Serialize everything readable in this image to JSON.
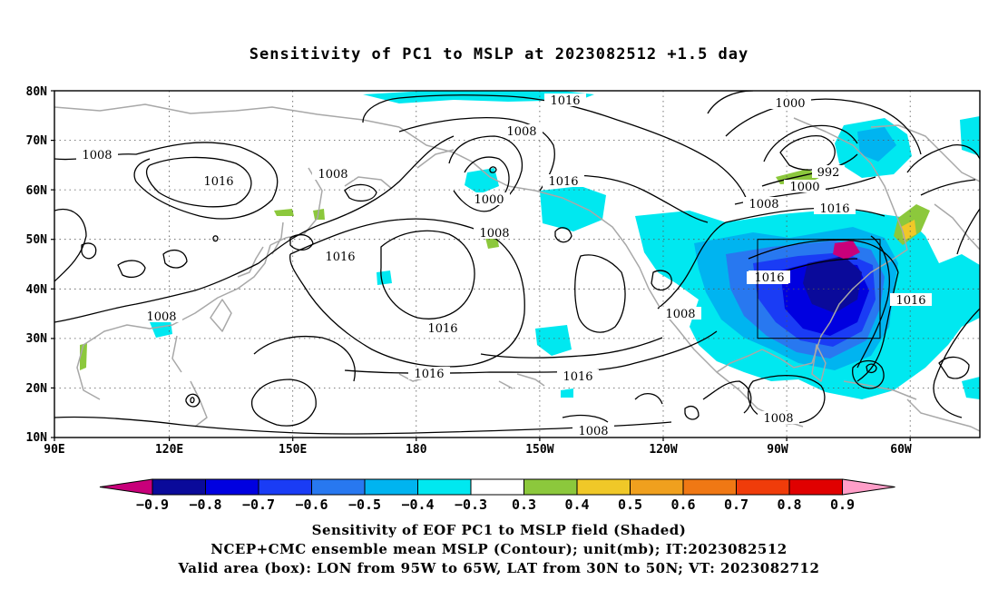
{
  "map": {
    "title": "Sensitivity of PC1 to MSLP at 2023082512 +1.5 day",
    "lat_labels": [
      "80N",
      "70N",
      "60N",
      "50N",
      "40N",
      "30N",
      "20N",
      "10N"
    ],
    "lon_labels": [
      "90E",
      "120E",
      "150E",
      "180",
      "150W",
      "120W",
      "90W",
      "60W"
    ],
    "contour_labels": [
      "1016",
      "1008",
      "1008",
      "1016",
      "1008",
      "1016",
      "1000",
      "1008",
      "1016",
      "1016",
      "1008",
      "1016",
      "1016",
      "1016",
      "1008",
      "1008",
      "1000",
      "992",
      "1000",
      "1008",
      "1016",
      "1016",
      "1016",
      "1008"
    ],
    "box": {
      "lon_from": "95W",
      "lon_to": "65W",
      "lat_from": "30N",
      "lat_to": "50N"
    }
  },
  "colorbar": {
    "ticks": [
      "-0.9",
      "-0.8",
      "-0.7",
      "-0.6",
      "-0.5",
      "-0.4",
      "-0.3",
      "0.3",
      "0.4",
      "0.5",
      "0.6",
      "0.7",
      "0.8",
      "0.9"
    ],
    "colors": [
      "#c8007a",
      "#0a0a9a",
      "#0000e0",
      "#1a3cf5",
      "#2878f0",
      "#00b4f0",
      "#00e8f0",
      "#ffffff",
      "#8cc83c",
      "#f0c828",
      "#f0a01e",
      "#f07814",
      "#f03c0a",
      "#e00000",
      "#ff9ec8"
    ]
  },
  "captions": {
    "line1": "Sensitivity of EOF PC1 to MSLP field (Shaded)",
    "line2": "NCEP+CMC ensemble mean MSLP (Contour); unit(mb); IT:2023082512",
    "line3": "Valid area (box): LON from 95W to 65W, LAT from 30N to 50N; VT: 2023082712"
  }
}
